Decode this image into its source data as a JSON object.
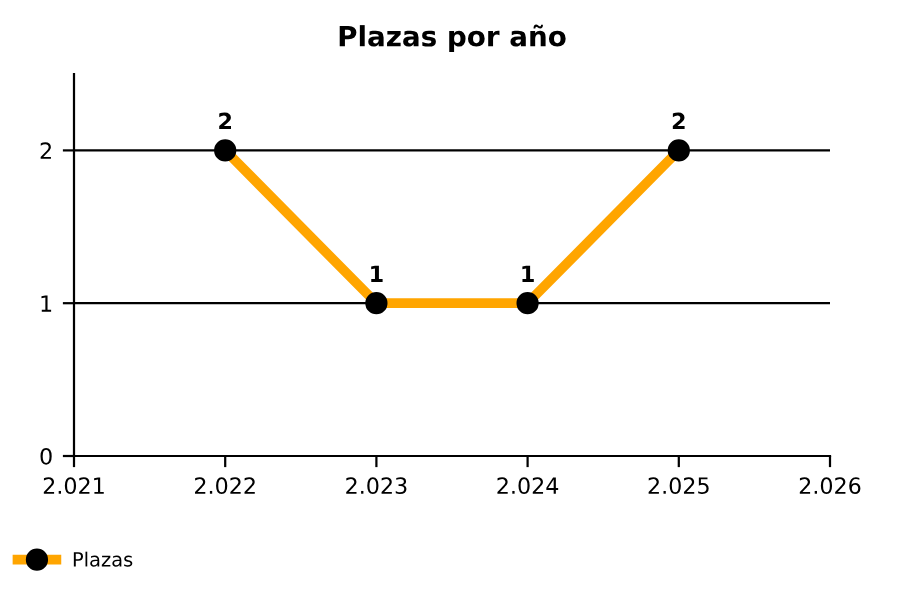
{
  "chart_data": {
    "type": "line",
    "title": "Plazas por año",
    "x": [
      2022,
      2023,
      2024,
      2025
    ],
    "series": [
      {
        "name": "Plazas",
        "color": "#ffa500",
        "values": [
          2,
          1,
          1,
          2
        ]
      }
    ],
    "xlim": [
      2021,
      2026
    ],
    "xticks": [
      {
        "value": 2021,
        "label": "2.021"
      },
      {
        "value": 2022,
        "label": "2.022"
      },
      {
        "value": 2023,
        "label": "2.023"
      },
      {
        "value": 2024,
        "label": "2.024"
      },
      {
        "value": 2025,
        "label": "2.025"
      },
      {
        "value": 2026,
        "label": "2.026"
      }
    ],
    "ylim": [
      0,
      2.5
    ],
    "yticks": [
      0,
      1,
      2
    ],
    "grid": "y",
    "legend": "bottom left",
    "marker": "circle",
    "line_style": "solid",
    "data_labels": true
  }
}
